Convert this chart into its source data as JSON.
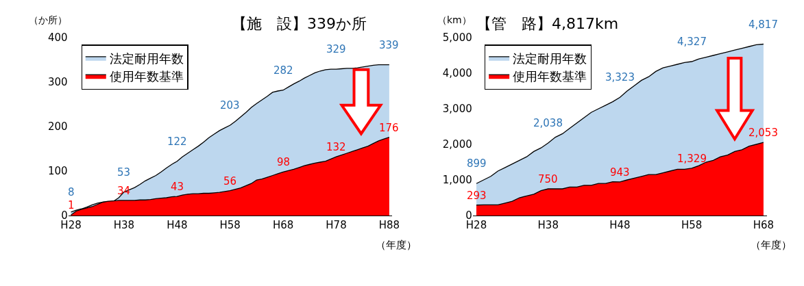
{
  "chart_data": [
    {
      "type": "area",
      "title": "【施　設】339か所",
      "ylabel": "（か所）",
      "xlabel": "（年度）",
      "legend": "top left",
      "categories": [
        "H28",
        null,
        null,
        null,
        null,
        null,
        null,
        null,
        null,
        null,
        "H38",
        null,
        null,
        null,
        null,
        null,
        null,
        null,
        null,
        null,
        "H48",
        null,
        null,
        null,
        null,
        null,
        null,
        null,
        null,
        null,
        "H58",
        null,
        null,
        null,
        null,
        null,
        null,
        null,
        null,
        null,
        "H68",
        null,
        null,
        null,
        null,
        null,
        null,
        null,
        null,
        null,
        "H78",
        null,
        null,
        null,
        null,
        null,
        null,
        null,
        null,
        null,
        "H88"
      ],
      "ylim": [
        0,
        400
      ],
      "yticks": [
        0,
        100,
        200,
        300,
        400
      ],
      "series": [
        {
          "name": "法定耐用年数",
          "color": "#bdd7ee",
          "values": [
            8,
            12,
            15,
            19,
            24,
            28,
            30,
            31,
            32,
            40,
            53,
            58,
            63,
            70,
            78,
            84,
            90,
            98,
            107,
            115,
            122,
            132,
            140,
            148,
            156,
            165,
            175,
            183,
            191,
            197,
            203,
            212,
            222,
            232,
            243,
            252,
            260,
            268,
            277,
            280,
            282,
            289,
            296,
            302,
            309,
            315,
            321,
            325,
            328,
            329,
            329,
            330,
            331,
            331,
            332,
            334,
            336,
            338,
            339,
            339,
            339
          ],
          "value_labels": [
            "8",
            null,
            null,
            null,
            null,
            null,
            null,
            null,
            null,
            null,
            "53",
            null,
            null,
            null,
            null,
            null,
            null,
            null,
            null,
            null,
            "122",
            null,
            null,
            null,
            null,
            null,
            null,
            null,
            null,
            null,
            "203",
            null,
            null,
            null,
            null,
            null,
            null,
            null,
            null,
            null,
            "282",
            null,
            null,
            null,
            null,
            null,
            null,
            null,
            null,
            null,
            "329",
            null,
            null,
            null,
            null,
            null,
            null,
            null,
            null,
            null,
            "339"
          ]
        },
        {
          "name": "使用年数基準",
          "color": "#ff0000",
          "values": [
            1,
            10,
            14,
            17,
            20,
            25,
            30,
            32,
            33,
            34,
            34,
            34,
            34,
            35,
            35,
            36,
            38,
            39,
            40,
            42,
            43,
            46,
            48,
            49,
            49,
            50,
            50,
            51,
            52,
            54,
            56,
            59,
            62,
            67,
            72,
            80,
            82,
            86,
            90,
            94,
            98,
            101,
            104,
            108,
            112,
            115,
            118,
            120,
            122,
            127,
            132,
            136,
            140,
            144,
            148,
            152,
            156,
            162,
            168,
            172,
            176
          ],
          "value_labels": [
            "1",
            null,
            null,
            null,
            null,
            null,
            null,
            null,
            null,
            null,
            "34",
            null,
            null,
            null,
            null,
            null,
            null,
            null,
            null,
            null,
            "43",
            null,
            null,
            null,
            null,
            null,
            null,
            null,
            null,
            null,
            "56",
            null,
            null,
            null,
            null,
            null,
            null,
            null,
            null,
            null,
            "98",
            null,
            null,
            null,
            null,
            null,
            null,
            null,
            null,
            null,
            "132",
            null,
            null,
            null,
            null,
            null,
            null,
            null,
            null,
            null,
            "176"
          ]
        }
      ]
    },
    {
      "type": "area",
      "title": "【管　路】4,817km",
      "ylabel": "（km）",
      "xlabel": "（年度）",
      "legend": "top left",
      "categories": [
        "H28",
        null,
        null,
        null,
        null,
        null,
        null,
        null,
        null,
        null,
        "H38",
        null,
        null,
        null,
        null,
        null,
        null,
        null,
        null,
        null,
        "H48",
        null,
        null,
        null,
        null,
        null,
        null,
        null,
        null,
        null,
        "H58",
        null,
        null,
        null,
        null,
        null,
        null,
        null,
        null,
        null,
        "H68"
      ],
      "ylim": [
        0,
        5000
      ],
      "yticks": [
        0,
        {
          "value": 1000,
          "label": "1,000"
        },
        {
          "value": 2000,
          "label": "2,000"
        },
        {
          "value": 3000,
          "label": "3,000"
        },
        {
          "value": 4000,
          "label": "4,000"
        },
        {
          "value": 5000,
          "label": "5,000"
        }
      ],
      "series": [
        {
          "name": "法定耐用年数",
          "color": "#bdd7ee",
          "values": [
            899,
            1000,
            1100,
            1250,
            1350,
            1450,
            1550,
            1650,
            1800,
            1900,
            2038,
            2200,
            2300,
            2450,
            2600,
            2750,
            2900,
            3000,
            3100,
            3200,
            3323,
            3500,
            3650,
            3800,
            3900,
            4050,
            4150,
            4200,
            4250,
            4300,
            4327,
            4400,
            4450,
            4500,
            4550,
            4600,
            4650,
            4700,
            4750,
            4800,
            4817
          ],
          "value_labels": [
            "899",
            null,
            null,
            null,
            null,
            null,
            null,
            null,
            null,
            null,
            "2,038",
            null,
            null,
            null,
            null,
            null,
            null,
            null,
            null,
            null,
            "3,323",
            null,
            null,
            null,
            null,
            null,
            null,
            null,
            null,
            null,
            "4,327",
            null,
            null,
            null,
            null,
            null,
            null,
            null,
            null,
            null,
            "4,817"
          ]
        },
        {
          "name": "使用年数基準",
          "color": "#ff0000",
          "values": [
            293,
            300,
            300,
            300,
            350,
            400,
            500,
            550,
            600,
            700,
            750,
            750,
            750,
            800,
            800,
            850,
            850,
            900,
            900,
            950,
            943,
            1000,
            1050,
            1100,
            1150,
            1150,
            1200,
            1250,
            1300,
            1300,
            1329,
            1400,
            1500,
            1550,
            1650,
            1700,
            1800,
            1850,
            1950,
            2000,
            2053
          ],
          "value_labels": [
            "293",
            null,
            null,
            null,
            null,
            null,
            null,
            null,
            null,
            null,
            "750",
            null,
            null,
            null,
            null,
            null,
            null,
            null,
            null,
            null,
            "943",
            null,
            null,
            null,
            null,
            null,
            null,
            null,
            null,
            null,
            "1,329",
            null,
            null,
            null,
            null,
            null,
            null,
            null,
            null,
            null,
            "2,053"
          ]
        }
      ]
    }
  ]
}
